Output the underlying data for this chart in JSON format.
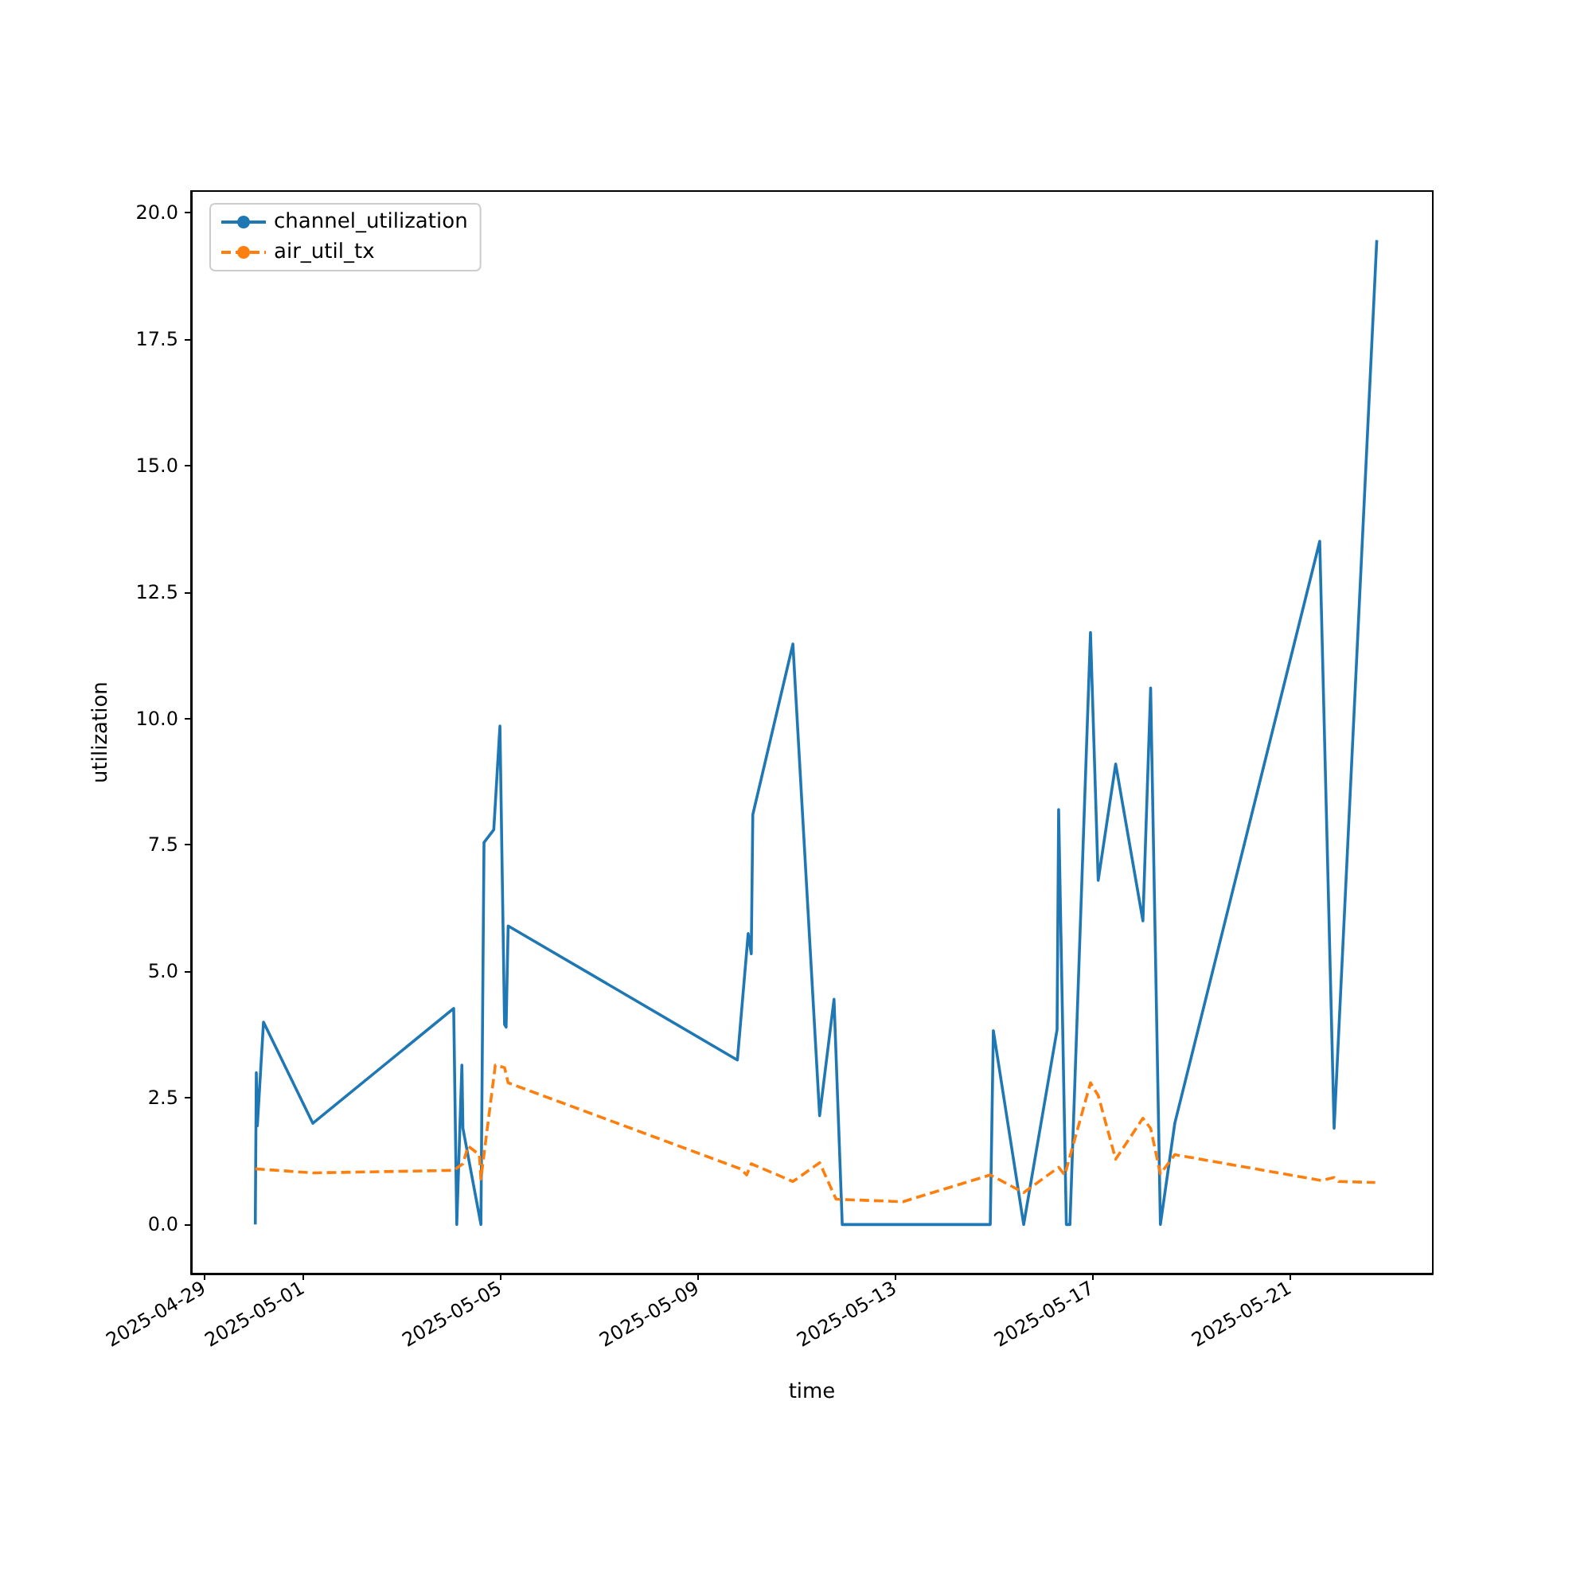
{
  "chart_data": {
    "type": "line",
    "xlabel": "time",
    "ylabel": "utilization",
    "xlim": [
      "2025-04-28T17:45",
      "2025-05-23T21:45"
    ],
    "xticks": [
      "2025-04-29",
      "2025-05-01",
      "2025-05-05",
      "2025-05-09",
      "2025-05-13",
      "2025-05-17",
      "2025-05-21"
    ],
    "ylim": [
      -0.97,
      20.42
    ],
    "yticks": [
      {
        "value": 0,
        "label": "0.0"
      },
      {
        "value": 2.5,
        "label": "2.5"
      },
      {
        "value": 5,
        "label": "5.0"
      },
      {
        "value": 7.5,
        "label": "7.5"
      },
      {
        "value": 10,
        "label": "10.0"
      },
      {
        "value": 12.5,
        "label": "12.5"
      },
      {
        "value": 15,
        "label": "15.0"
      },
      {
        "value": 17.5,
        "label": "17.5"
      },
      {
        "value": 20,
        "label": "20.0"
      }
    ],
    "grid": false,
    "legend": "top left",
    "marker": "none",
    "series": [
      {
        "name": "channel_utilization",
        "color": "#1f77b4",
        "line_style": "solid",
        "x": [
          "2025-04-30T01:00",
          "2025-04-30T01:30",
          "2025-04-30T02:00",
          "2025-04-30T05:00",
          "2025-05-01T05:00",
          "2025-05-04T01:30",
          "2025-05-04T03:00",
          "2025-05-04T05:30",
          "2025-05-04T06:00",
          "2025-05-04T14:45",
          "2025-05-04T16:15",
          "2025-05-04T21:00",
          "2025-05-05T00:00",
          "2025-05-05T02:15",
          "2025-05-05T03:00",
          "2025-05-05T04:00",
          "2025-05-09T19:30",
          "2025-05-10T00:45",
          "2025-05-10T02:15",
          "2025-05-10T03:00",
          "2025-05-10T22:30",
          "2025-05-11T11:30",
          "2025-05-11T18:30",
          "2025-05-11T22:30",
          "2025-05-14T22:30",
          "2025-05-15T00:00",
          "2025-05-15T14:45",
          "2025-05-16T07:00",
          "2025-05-16T07:45",
          "2025-05-16T11:30",
          "2025-05-16T13:15",
          "2025-05-16T23:15",
          "2025-05-17T03:00",
          "2025-05-17T11:30",
          "2025-05-18T00:45",
          "2025-05-18T04:30",
          "2025-05-18T09:15",
          "2025-05-18T16:15",
          "2025-05-21T14:45",
          "2025-05-21T21:45",
          "2025-05-22T18:30"
        ],
        "values": [
          0,
          3.0,
          1.95,
          4.0,
          2.0,
          4.27,
          0,
          3.15,
          1.9,
          0,
          7.55,
          7.8,
          9.85,
          3.95,
          3.9,
          5.9,
          3.25,
          5.75,
          5.35,
          8.1,
          11.47,
          2.15,
          4.45,
          0,
          0,
          3.83,
          0,
          3.85,
          8.2,
          0,
          0,
          11.7,
          6.8,
          9.1,
          6.0,
          10.6,
          0,
          2.0,
          13.5,
          1.9,
          19.45
        ]
      },
      {
        "name": "air_util_tx",
        "color": "#ff7f0e",
        "line_style": "dashed",
        "x": [
          "2025-04-30T01:00",
          "2025-05-01T05:00",
          "2025-05-04T01:30",
          "2025-05-04T06:00",
          "2025-05-04T08:30",
          "2025-05-04T14:00",
          "2025-05-04T14:45",
          "2025-05-04T21:45",
          "2025-05-05T02:15",
          "2025-05-05T04:00",
          "2025-05-09T21:00",
          "2025-05-10T00:00",
          "2025-05-10T02:15",
          "2025-05-10T22:30",
          "2025-05-11T11:30",
          "2025-05-11T19:30",
          "2025-05-13T04:00",
          "2025-05-14T22:30",
          "2025-05-15T14:45",
          "2025-05-16T07:45",
          "2025-05-16T10:45",
          "2025-05-16T23:15",
          "2025-05-17T03:00",
          "2025-05-17T11:30",
          "2025-05-18T00:45",
          "2025-05-18T04:30",
          "2025-05-18T09:15",
          "2025-05-18T16:15",
          "2025-05-21T15:30",
          "2025-05-21T21:45",
          "2025-05-22T00:00",
          "2025-05-22T17:45"
        ],
        "values": [
          1.1,
          1.02,
          1.07,
          1.2,
          1.55,
          1.38,
          0.9,
          3.15,
          3.1,
          2.8,
          1.1,
          0.98,
          1.2,
          0.85,
          1.22,
          0.5,
          0.45,
          0.98,
          0.63,
          1.13,
          0.98,
          2.8,
          2.55,
          1.29,
          2.1,
          1.9,
          1.0,
          1.38,
          0.87,
          0.93,
          0.85,
          0.83
        ]
      }
    ]
  }
}
